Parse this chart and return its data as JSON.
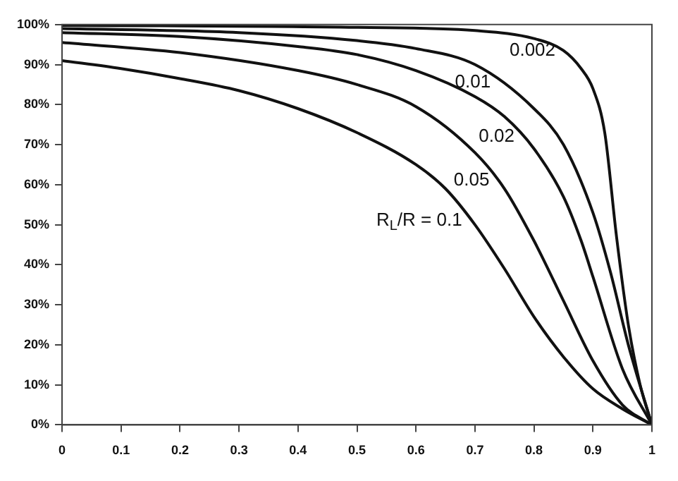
{
  "chart_data": {
    "type": "line",
    "color": "#111111",
    "series": [
      {
        "name": "R$_{L}$/R = 0.1",
        "x": [
          0,
          0.1,
          0.2,
          0.3,
          0.4,
          0.5,
          0.6,
          0.65,
          0.7,
          0.75,
          0.8,
          0.85,
          0.9,
          0.95,
          1
        ],
        "values": [
          91,
          89,
          86.5,
          83.5,
          79,
          73,
          65,
          59,
          50,
          39,
          27,
          17,
          9,
          4,
          0
        ]
      },
      {
        "name": "0.05",
        "x": [
          0,
          0.2,
          0.4,
          0.5,
          0.6,
          0.7,
          0.75,
          0.8,
          0.85,
          0.9,
          0.95,
          1
        ],
        "values": [
          95.5,
          93,
          88.5,
          85,
          79.5,
          68,
          59,
          46,
          31,
          16,
          5,
          0
        ]
      },
      {
        "name": "0.02",
        "x": [
          0,
          0.2,
          0.4,
          0.5,
          0.6,
          0.7,
          0.75,
          0.8,
          0.85,
          0.88,
          0.9,
          0.95,
          1
        ],
        "values": [
          98,
          97,
          94.5,
          92.5,
          88.5,
          82,
          77,
          69,
          57,
          46,
          37,
          14,
          0
        ]
      },
      {
        "name": "0.01",
        "x": [
          0,
          0.3,
          0.5,
          0.6,
          0.7,
          0.8,
          0.85,
          0.9,
          0.93,
          0.96,
          1
        ],
        "values": [
          99,
          98,
          96,
          94,
          90,
          79,
          70,
          53,
          38,
          20,
          0
        ]
      },
      {
        "name": "0.002",
        "x": [
          0,
          0.5,
          0.7,
          0.8,
          0.85,
          0.88,
          0.9,
          0.92,
          0.94,
          0.96,
          0.98,
          1
        ],
        "values": [
          99.8,
          99.3,
          98.5,
          96.5,
          93.5,
          89,
          84,
          73,
          47,
          25,
          10,
          0
        ]
      }
    ],
    "xlim": [
      0,
      1
    ],
    "xticks": [
      0,
      0.1,
      0.2,
      0.3,
      0.4,
      0.5,
      0.6,
      0.7,
      0.8,
      0.9,
      1
    ],
    "ylim": [
      0,
      100
    ],
    "yticks": [
      {
        "value": 0,
        "label": "0%"
      },
      {
        "value": 10,
        "label": "10%"
      },
      {
        "value": 20,
        "label": "20%"
      },
      {
        "value": 30,
        "label": "30%"
      },
      {
        "value": 40,
        "label": "40%"
      },
      {
        "value": 50,
        "label": "50%"
      },
      {
        "value": 60,
        "label": "60%"
      },
      {
        "value": 70,
        "label": "70%"
      },
      {
        "value": 80,
        "label": "80%"
      },
      {
        "value": 90,
        "label": "90%"
      },
      {
        "value": 100,
        "label": "100%"
      }
    ],
    "grid": false,
    "legend": false,
    "marker": "none",
    "line_style": "solid"
  }
}
